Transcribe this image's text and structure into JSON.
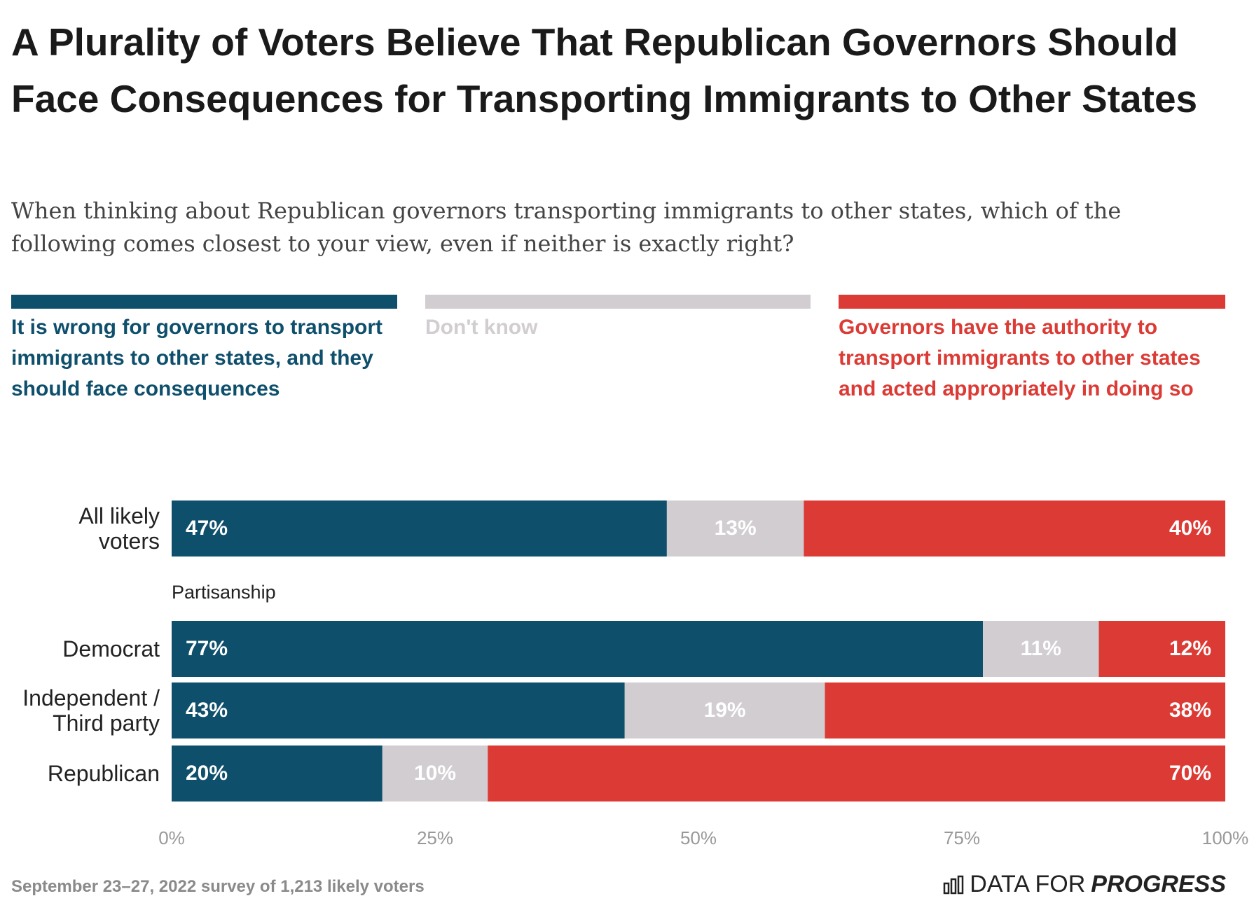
{
  "chart_data": {
    "type": "stacked_bar",
    "orientation": "horizontal",
    "title": "A Plurality of Voters Believe That Republican Governors Should Face Consequences for Transporting Immigrants to Other States",
    "subtitle": "When thinking about Republican governors transporting immigrants to other states, which of the following comes closest to your view, even if neither is exactly right?",
    "categories": [
      "All likely voters",
      "Democrat",
      "Independent / Third party",
      "Republican"
    ],
    "group_label": "Partisanship",
    "series": [
      {
        "name": "It is wrong for governors to transport immigrants to other states, and they should face consequences",
        "color": "#0e4f6c",
        "values": [
          47,
          77,
          43,
          20
        ],
        "value_labels": [
          "47%",
          "77%",
          "43%",
          "20%"
        ]
      },
      {
        "name": "Don't know",
        "color": "#d1cdd1",
        "values": [
          13,
          11,
          19,
          10
        ],
        "value_labels": [
          "13%",
          "11%",
          "19%",
          "10%"
        ]
      },
      {
        "name": "Governors have the authority to transport immigrants to other states and acted appropriately in doing so",
        "color": "#dc3a34",
        "values": [
          40,
          12,
          38,
          70
        ],
        "value_labels": [
          "40%",
          "12%",
          "38%",
          "70%"
        ]
      }
    ],
    "xlim": [
      0,
      100
    ],
    "xticks": [
      {
        "value": 0,
        "label": "0%"
      },
      {
        "value": 25,
        "label": "25%"
      },
      {
        "value": 50,
        "label": "50%"
      },
      {
        "value": 75,
        "label": "75%"
      },
      {
        "value": 100,
        "label": "100%"
      }
    ],
    "grid": false,
    "source": "September 23–27, 2022 survey of 1,213 likely voters",
    "logo": [
      "DATA FOR",
      "PROGRESS"
    ]
  }
}
